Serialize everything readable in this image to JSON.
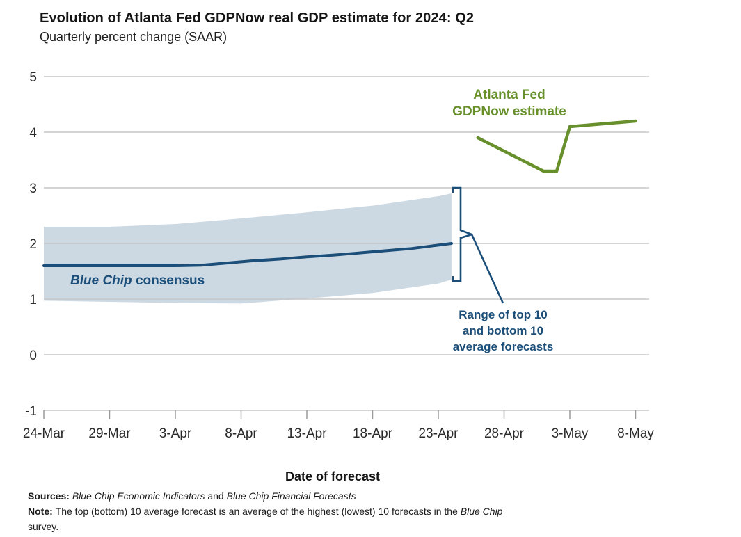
{
  "title": "Evolution of Atlanta Fed GDPNow real GDP estimate for 2024: Q2",
  "subtitle": "Quarterly percent change (SAAR)",
  "x_axis_title": "Date of forecast",
  "annotations": {
    "gdpnow_line1": "Atlanta Fed",
    "gdpnow_line2": "GDPNow estimate",
    "consensus_italic": "Blue Chip",
    "consensus_rest": " consensus",
    "range_line1": "Range of top 10",
    "range_line2": "and bottom 10",
    "range_line3": "average forecasts"
  },
  "footnote": {
    "sources_label": "Sources: ",
    "sources_italic_1": "Blue Chip Economic Indicators",
    "sources_and": " and ",
    "sources_italic_2": "Blue Chip Financial Forecasts",
    "note_label": "Note: ",
    "note_text": "The top (bottom) 10 average forecast is an average of the highest (lowest) 10 forecasts in the ",
    "note_italic": "Blue Chip",
    "note_tail": "survey."
  },
  "chart_data": {
    "type": "line",
    "title": "Evolution of Atlanta Fed GDPNow real GDP estimate for 2024: Q2",
    "ylabel": "Quarterly percent change (SAAR)",
    "xlabel": "Date of forecast",
    "ylim": [
      -1,
      5
    ],
    "y_ticks": [
      5,
      4,
      3,
      2,
      1,
      0,
      -1
    ],
    "x_encoding": "day = days since 24-Mar-2024",
    "x_ticks": [
      {
        "label": "24-Mar",
        "day": 0
      },
      {
        "label": "29-Mar",
        "day": 5
      },
      {
        "label": "3-Apr",
        "day": 10
      },
      {
        "label": "8-Apr",
        "day": 15
      },
      {
        "label": "13-Apr",
        "day": 20
      },
      {
        "label": "18-Apr",
        "day": 25
      },
      {
        "label": "23-Apr",
        "day": 30
      },
      {
        "label": "28-Apr",
        "day": 35
      },
      {
        "label": "3-May",
        "day": 40
      },
      {
        "label": "8-May",
        "day": 45
      }
    ],
    "series": [
      {
        "name": "Blue Chip consensus",
        "color": "#1b4e79",
        "line_width": 4,
        "x_days": [
          0,
          5,
          10,
          12,
          14,
          16,
          18,
          20,
          22,
          24,
          26,
          28,
          30,
          31
        ],
        "values": [
          1.6,
          1.6,
          1.6,
          1.61,
          1.65,
          1.69,
          1.72,
          1.76,
          1.79,
          1.83,
          1.87,
          1.91,
          1.97,
          2.0
        ]
      },
      {
        "name": "Atlanta Fed GDPNow estimate",
        "color": "#67902c",
        "line_width": 4.5,
        "x_days": [
          33,
          38,
          39,
          40,
          45
        ],
        "values": [
          3.9,
          3.3,
          3.3,
          4.1,
          4.2
        ]
      }
    ],
    "band": {
      "name": "Range of top 10 and bottom 10 average forecasts",
      "fill_color": "#cdd9e2",
      "x_days": [
        0,
        5,
        10,
        15,
        20,
        25,
        30,
        31
      ],
      "top": [
        2.3,
        2.3,
        2.35,
        2.45,
        2.56,
        2.68,
        2.85,
        2.9
      ],
      "bottom": [
        0.97,
        0.95,
        0.93,
        0.92,
        1.01,
        1.11,
        1.28,
        1.35
      ]
    },
    "style": {
      "grid_color": "#c6c6c6",
      "tick_color": "#9a9a9a",
      "axis_text_color": "#2a2a2a",
      "accent_blue": "#1b4e79",
      "accent_green": "#67902b"
    }
  }
}
